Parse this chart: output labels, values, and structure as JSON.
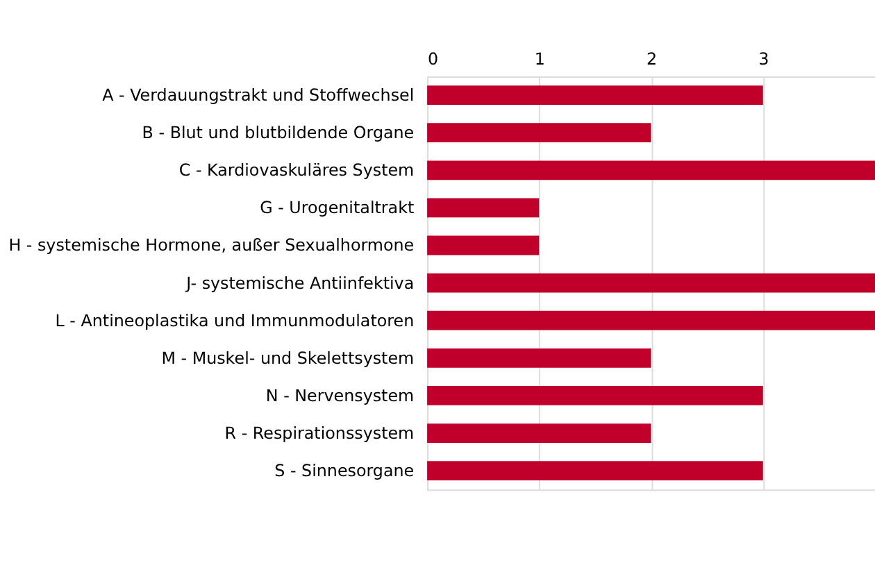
{
  "chart_data": {
    "type": "bar",
    "orientation": "horizontal",
    "categories": [
      "A - Verdauungstrakt und Stoffwechsel",
      "B - Blut und blutbildende Organe",
      "C - Kardiovaskuläres System",
      "G - Urogenitaltrakt",
      "H - systemische Hormone, außer Sexualhormone",
      "J- systemische Antiinfektiva",
      "L - Antineoplastika und Immunmodulatoren",
      "M - Muskel- und Skelettsystem",
      "N - Nervensystem",
      "R - Respirationssystem",
      "S - Sinnesorgane"
    ],
    "values": [
      3,
      2,
      4,
      1,
      1,
      4,
      4,
      2,
      3,
      2,
      3
    ],
    "color": "#c0002a",
    "xlim": [
      0,
      4
    ],
    "xticks": [
      0,
      1,
      2,
      3
    ],
    "grid": "x"
  }
}
